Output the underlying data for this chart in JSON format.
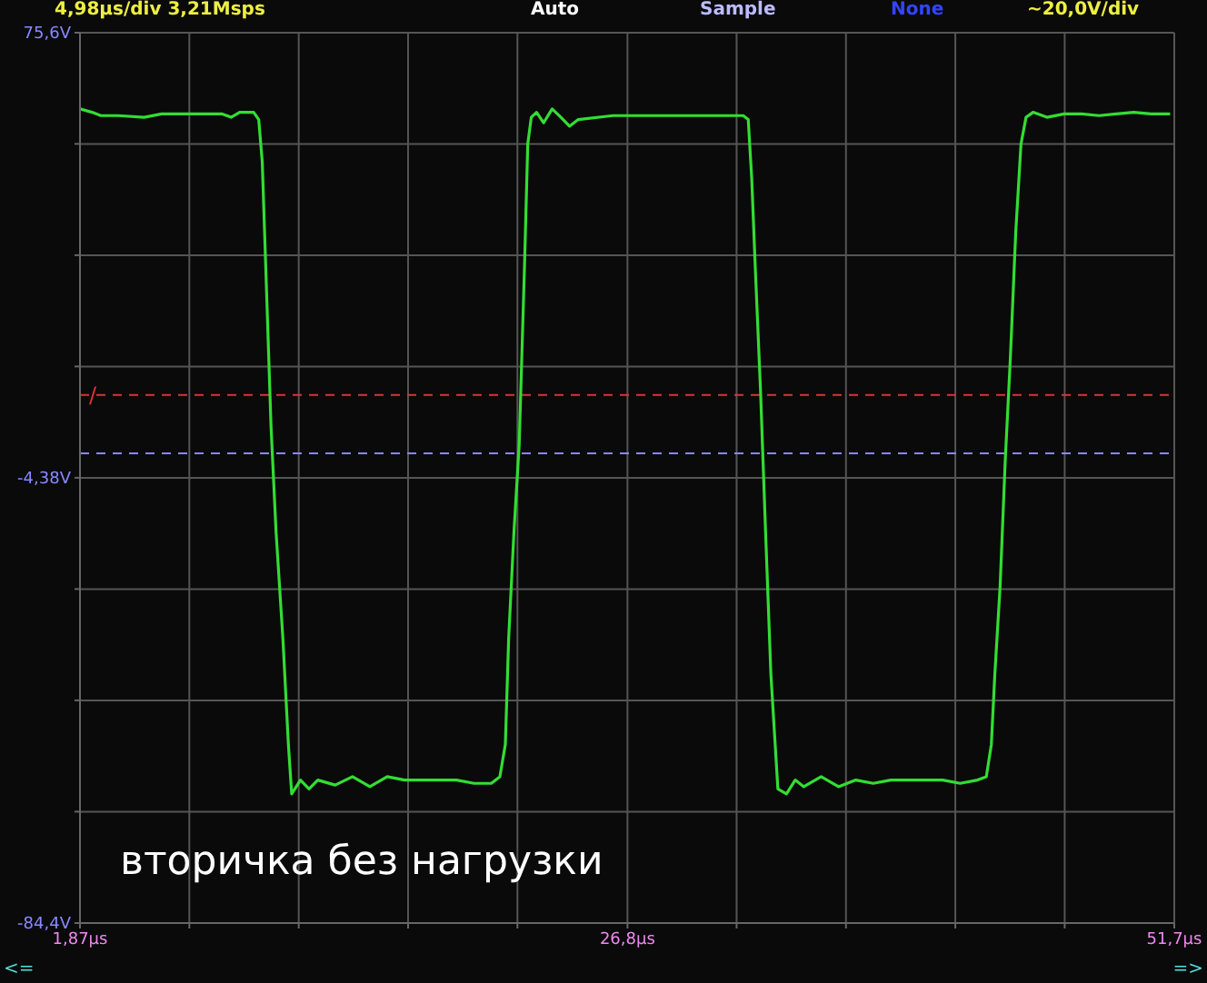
{
  "chart_data": {
    "type": "line",
    "x": [
      1.87,
      2.42,
      2.82,
      3.61,
      4.79,
      5.59,
      6.77,
      8.35,
      8.75,
      9.14,
      9.78,
      10.01,
      10.17,
      10.33,
      10.57,
      10.8,
      11.11,
      11.36,
      11.51,
      11.91,
      12.3,
      12.7,
      13.49,
      14.28,
      15.07,
      15.86,
      16.65,
      17.44,
      18.23,
      19.02,
      19.81,
      20.6,
      20.99,
      21.24,
      21.39,
      21.63,
      21.87,
      22.11,
      22.26,
      22.42,
      22.66,
      22.98,
      23.37,
      23.77,
      24.16,
      24.56,
      26.14,
      27.72,
      29.3,
      30.88,
      32.07,
      32.3,
      32.46,
      32.62,
      32.86,
      33.09,
      33.33,
      33.65,
      34.04,
      34.44,
      34.83,
      35.62,
      36.41,
      37.2,
      37.99,
      38.79,
      39.58,
      40.37,
      41.16,
      41.95,
      42.74,
      43.14,
      43.37,
      43.53,
      43.77,
      44.0,
      44.24,
      44.48,
      44.72,
      44.95,
      45.27,
      45.9,
      46.69,
      47.48,
      48.27,
      49.06,
      49.85,
      50.64,
      51.51
    ],
    "series": [
      {
        "color": "#33dd33",
        "values": [
          61.9,
          61.3,
          60.7,
          60.7,
          60.4,
          61.0,
          61.0,
          61.0,
          60.4,
          61.3,
          61.3,
          60.0,
          52.4,
          33.4,
          4.8,
          -14.2,
          -33.3,
          -52.3,
          -61.2,
          -58.7,
          -60.3,
          -58.7,
          -59.6,
          -58.1,
          -59.9,
          -58.1,
          -58.7,
          -58.7,
          -58.7,
          -58.7,
          -59.3,
          -59.3,
          -58.1,
          -52.3,
          -33.3,
          -14.2,
          1.6,
          33.4,
          55.6,
          60.4,
          61.3,
          59.4,
          61.9,
          60.4,
          58.8,
          60.0,
          60.7,
          60.7,
          60.7,
          60.7,
          60.7,
          60.0,
          49.3,
          33.4,
          11.2,
          -14.2,
          -39.6,
          -60.3,
          -61.2,
          -58.7,
          -59.9,
          -58.1,
          -59.9,
          -58.7,
          -59.3,
          -58.7,
          -58.7,
          -58.7,
          -58.7,
          -59.3,
          -58.7,
          -58.1,
          -52.3,
          -39.6,
          -23.8,
          -1.5,
          17.5,
          39.7,
          55.6,
          60.4,
          61.3,
          60.4,
          61.0,
          61.0,
          60.7,
          61.0,
          61.3,
          61.0,
          61.0
        ]
      }
    ],
    "xlim": [
      1.87,
      51.7
    ],
    "xticks": [
      {
        "value": 1.87,
        "label": "1,87µs"
      },
      {
        "value": 6.85,
        "label": null
      },
      {
        "value": 11.83,
        "label": null
      },
      {
        "value": 16.81,
        "label": null
      },
      {
        "value": 21.79,
        "label": null
      },
      {
        "value": 26.8,
        "label": "26,8µs"
      },
      {
        "value": 31.77,
        "label": null
      },
      {
        "value": 36.75,
        "label": null
      },
      {
        "value": 41.73,
        "label": null
      },
      {
        "value": 46.71,
        "label": null
      },
      {
        "value": 51.7,
        "label": "51,7µs"
      }
    ],
    "ylim": [
      -84.4,
      75.6
    ],
    "yticks": [
      {
        "value": -84.4,
        "label": "-84,4V"
      },
      {
        "value": -64.38,
        "label": null
      },
      {
        "value": -44.38,
        "label": null
      },
      {
        "value": -24.38,
        "label": null
      },
      {
        "value": -4.38,
        "label": "-4,38V"
      },
      {
        "value": 15.62,
        "label": null
      },
      {
        "value": 35.62,
        "label": null
      },
      {
        "value": 55.62,
        "label": null
      },
      {
        "value": 75.6,
        "label": "75,6V"
      }
    ],
    "grid": true,
    "ref_lines": [
      {
        "axis": "y",
        "value": 10.5,
        "label": "/",
        "color": "#dd3333",
        "line_style": "dashed"
      },
      {
        "axis": "y",
        "value": 0,
        "color": "#8888ff",
        "line_style": "dashed"
      }
    ],
    "annotations": [
      "4,98µs/div  3,21Msps",
      "Auto",
      "Sample",
      "None",
      "~20,0V/div",
      "вторичка без нагрузки",
      "<=",
      "=>"
    ]
  }
}
